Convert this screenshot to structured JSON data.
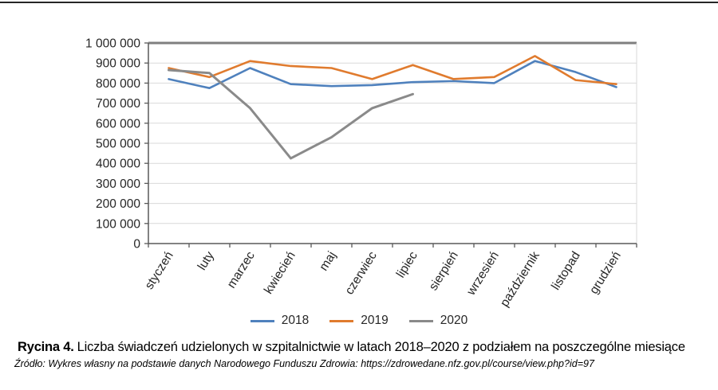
{
  "figure": {
    "caption_label": "Rycina 4.",
    "caption_text": "Liczba świadczeń udzielonych w szpitalnictwie w latach 2018–2020 z podziałem na poszczególne miesiące",
    "source": "Źródło: Wykres własny na podstawie danych Narodowego Funduszu Zdrowia: https://zdrowedane.nfz.gov.pl/course/view.php?id=97"
  },
  "chart_data": {
    "type": "line",
    "categories": [
      "styczeń",
      "luty",
      "marzec",
      "kwiecień",
      "maj",
      "czerwiec",
      "lipiec",
      "sierpień",
      "wrzesień",
      "październik",
      "listopad",
      "grudzień"
    ],
    "series": [
      {
        "name": "2018",
        "color": "#4F81BD",
        "values": [
          820000,
          775000,
          875000,
          795000,
          785000,
          790000,
          805000,
          810000,
          800000,
          910000,
          855000,
          780000
        ]
      },
      {
        "name": "2019",
        "color": "#E07B2E",
        "values": [
          875000,
          830000,
          910000,
          885000,
          875000,
          820000,
          890000,
          820000,
          830000,
          935000,
          815000,
          795000
        ]
      },
      {
        "name": "2020",
        "color": "#8A8A8A",
        "values": [
          865000,
          850000,
          675000,
          425000,
          530000,
          675000,
          745000,
          null,
          null,
          null,
          null,
          null
        ]
      }
    ],
    "ylim": [
      0,
      1000000
    ],
    "ytick_step": 100000,
    "ytick_labels": [
      "0",
      "100 000",
      "200 000",
      "300 000",
      "400 000",
      "500 000",
      "600 000",
      "700 000",
      "800 000",
      "900 000",
      "1 000 000"
    ],
    "grid": true,
    "legend_position": "bottom",
    "colors": {
      "gridline": "#D9D9D9",
      "plot_top_border": "#7F7F7F",
      "plot_right_border": "#D9D9D9",
      "axis": "#595959",
      "tick_label": "#262626"
    }
  }
}
